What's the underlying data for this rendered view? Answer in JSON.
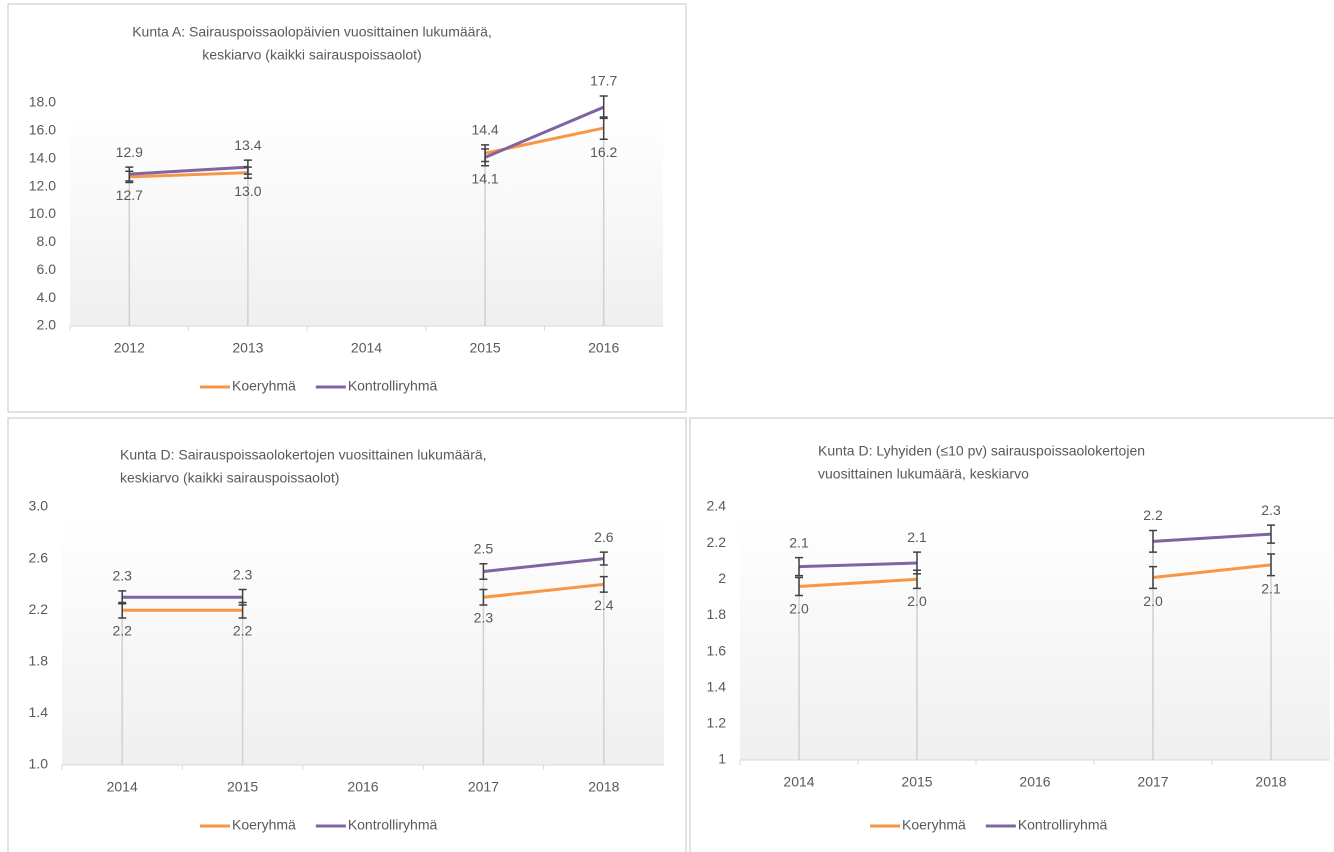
{
  "chart_data": [
    {
      "type": "line",
      "title": [
        "Kunta A: Sairauspoissaolopäivien  vuosittainen lukumäärä,",
        "keskiarvo  (kaikki sairauspoissaolot)"
      ],
      "categories": [
        "2012",
        "2013",
        "2014",
        "2015",
        "2016"
      ],
      "series": [
        {
          "name": "Koeryhmä",
          "color": "#f79646",
          "values": [
            12.7,
            13.0,
            null,
            14.4,
            16.2
          ],
          "value_labels": [
            "12.7",
            "13.0",
            null,
            "14.4",
            "16.2"
          ],
          "errors": [
            0.4,
            0.4,
            null,
            0.6,
            0.8
          ]
        },
        {
          "name": "Kontrolliryhmä",
          "color": "#8064a2",
          "values": [
            12.9,
            13.4,
            null,
            14.1,
            17.7
          ],
          "value_labels": [
            "12.9",
            "13.4",
            null,
            "14.1",
            "17.7"
          ],
          "errors": [
            0.5,
            0.5,
            null,
            0.6,
            0.8
          ]
        }
      ],
      "ylim": [
        2,
        18
      ],
      "yticks": [
        {
          "value": 2,
          "label": "2.0"
        },
        {
          "value": 4,
          "label": "4.0"
        },
        {
          "value": 6,
          "label": "6.0"
        },
        {
          "value": 8,
          "label": "8.0"
        },
        {
          "value": 10,
          "label": "10.0"
        },
        {
          "value": 12,
          "label": "12.0"
        },
        {
          "value": 14,
          "label": "14.0"
        },
        {
          "value": 16,
          "label": "16.0"
        },
        {
          "value": 18,
          "label": "18.0"
        }
      ],
      "drop_lines": true,
      "legend": "bottom"
    },
    {
      "type": "line",
      "title": [
        "Kunta D: Sairauspoissaolokertojen   vuosittainen  lukumäärä,",
        "keskiarvo  (kaikki sairauspoissaolot)"
      ],
      "categories": [
        "2014",
        "2015",
        "2016",
        "2017",
        "2018"
      ],
      "series": [
        {
          "name": "Koeryhmä",
          "color": "#f79646",
          "values": [
            2.2,
            2.2,
            null,
            2.3,
            2.4
          ],
          "errors": [
            0.06,
            0.06,
            null,
            0.06,
            0.06
          ]
        },
        {
          "name": "Kontrolliryhmä",
          "color": "#8064a2",
          "values": [
            2.3,
            2.3,
            null,
            2.5,
            2.6
          ],
          "errors": [
            0.05,
            0.06,
            null,
            0.06,
            0.05
          ]
        }
      ],
      "ylim": [
        1,
        3
      ],
      "yticks": [
        {
          "value": 1,
          "label": "1.0"
        },
        1.4,
        1.8,
        2.2,
        2.6,
        {
          "value": 3,
          "label": "3.0"
        }
      ],
      "drop_lines": true,
      "legend": "bottom"
    },
    {
      "type": "line",
      "title": [
        "Kunta D: Lyhyiden (≤10 pv) sairauspoissaolokertojen",
        "vuosittainen lukumäärä, keskiarvo"
      ],
      "categories": [
        "2014",
        "2015",
        "2016",
        "2017",
        "2018"
      ],
      "series": [
        {
          "name": "Koeryhmä",
          "color": "#f79646",
          "values": [
            1.96,
            2.0,
            null,
            2.01,
            2.08
          ],
          "value_labels": [
            "2.0",
            "2.0",
            null,
            "2.0",
            "2.1"
          ],
          "errors": [
            0.05,
            0.05,
            null,
            0.06,
            0.06
          ]
        },
        {
          "name": "Kontrolliryhmä",
          "color": "#8064a2",
          "values": [
            2.07,
            2.09,
            null,
            2.21,
            2.25
          ],
          "value_labels": [
            "2.1",
            "2.1",
            null,
            "2.2",
            "2.3"
          ],
          "errors": [
            0.05,
            0.06,
            null,
            0.06,
            0.05
          ]
        }
      ],
      "ylim": [
        1,
        2.4
      ],
      "yticks": [
        1,
        1.2,
        1.4,
        1.6,
        1.8,
        2,
        2.2,
        2.4
      ],
      "drop_lines": true,
      "legend": "bottom"
    }
  ]
}
